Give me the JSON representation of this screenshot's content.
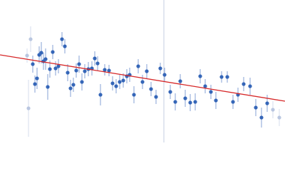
{
  "chart_data": {
    "type": "scatter",
    "xlim": [
      0,
      400
    ],
    "ylim": [
      200,
      0
    ],
    "vline": {
      "x": 230,
      "color": "#c5cde0"
    },
    "fit": {
      "x": [
        0,
        400
      ],
      "y": [
        77,
        142
      ],
      "color": "#d62728"
    },
    "series": [
      {
        "color": "#3566b8",
        "x": [
          46,
          49,
          52,
          55,
          58,
          61,
          64,
          67,
          70,
          74,
          78,
          82,
          87,
          91,
          95,
          99,
          103,
          107,
          111,
          115,
          119,
          124,
          129,
          133,
          137,
          141,
          147,
          153,
          158,
          163,
          168,
          173,
          178,
          182,
          188,
          194,
          200,
          206,
          212,
          219,
          225,
          231,
          239,
          246,
          253,
          260,
          267,
          274,
          281,
          288,
          296,
          303,
          311,
          319,
          327,
          334,
          342,
          351,
          359,
          367,
          375
        ],
        "values": [
          90,
          118,
          110,
          77,
          74,
          86,
          83,
          122,
          97,
          73,
          96,
          93,
          55,
          65,
          102,
          124,
          119,
          99,
          90,
          115,
          100,
          97,
          96,
          82,
          89,
          133,
          98,
          99,
          117,
          121,
          115,
          113,
          107,
          105,
          133,
          93,
          115,
          100,
          125,
          136,
          96,
          105,
          129,
          143,
          114,
          138,
          144,
          143,
          107,
          121,
          129,
          141,
          108,
          108,
          143,
          133,
          118,
          121,
          151,
          165,
          145
        ],
        "errors": [
          12,
          12,
          15,
          12,
          15,
          12,
          15,
          18,
          12,
          10,
          10,
          10,
          10,
          10,
          12,
          12,
          10,
          10,
          12,
          12,
          10,
          10,
          10,
          10,
          10,
          15,
          8,
          8,
          10,
          10,
          10,
          10,
          10,
          10,
          12,
          10,
          10,
          10,
          10,
          10,
          8,
          10,
          10,
          12,
          10,
          12,
          12,
          12,
          10,
          10,
          10,
          12,
          8,
          8,
          10,
          10,
          10,
          12,
          12,
          14,
          12
        ]
      },
      {
        "color": "#b9c6e0",
        "x": [
          38,
          40,
          43,
          383,
          392
        ],
        "values": [
          78,
          152,
          55,
          154,
          165
        ],
        "errors": [
          10,
          40,
          18,
          12,
          12
        ]
      }
    ]
  }
}
